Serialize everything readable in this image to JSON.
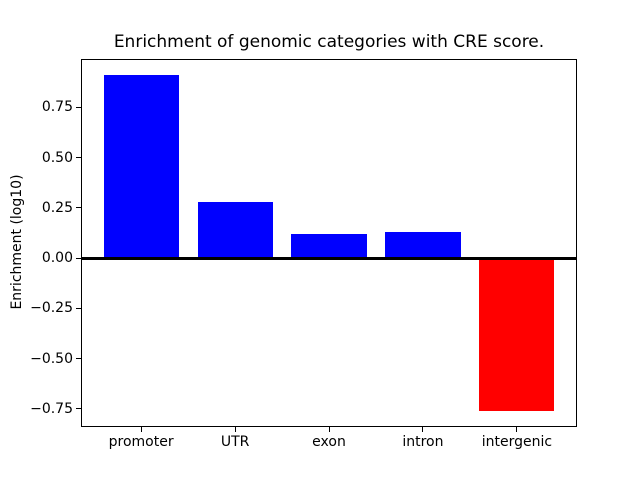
{
  "chart_data": {
    "type": "bar",
    "title": "Enrichment of genomic categories with CRE score.",
    "xlabel": "",
    "ylabel": "Enrichment (log10)",
    "categories": [
      "promoter",
      "UTR",
      "exon",
      "intron",
      "intergenic"
    ],
    "values": [
      0.91,
      0.28,
      0.12,
      0.13,
      -0.76
    ],
    "positive_color": "#0000ff",
    "negative_color": "#ff0000",
    "bar_width": 0.8,
    "ylim": [
      -0.84,
      0.99
    ],
    "xlim": [
      -0.64,
      4.64
    ],
    "yticks": [
      0.75,
      0.5,
      0.25,
      0.0,
      -0.25,
      -0.5,
      -0.75
    ],
    "ytick_labels": [
      "0.75",
      "0.50",
      "0.25",
      "0.00",
      "−0.25",
      "−0.50",
      "−0.75"
    ],
    "zero_line": true,
    "grid": false,
    "legend": null,
    "background_color": "#ffffff",
    "frame_color": "#000000"
  }
}
